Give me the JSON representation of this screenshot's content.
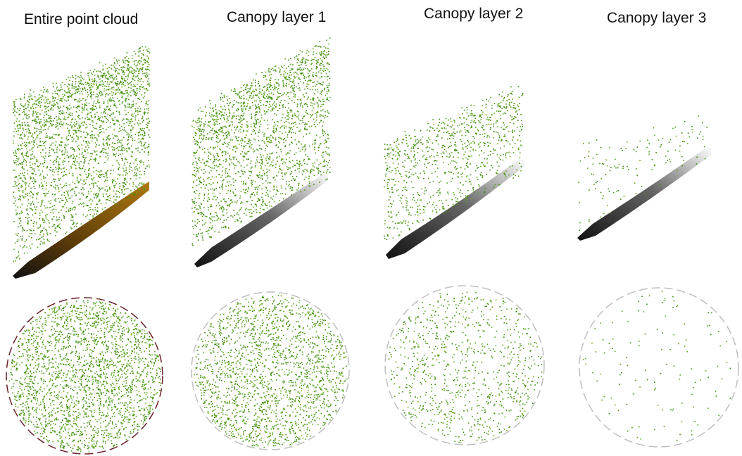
{
  "panels": [
    {
      "id": "entire",
      "title": "Entire point cloud",
      "ground_color": "#8a5a10",
      "density": 1.0,
      "circle_stroke": "#6b1f2a"
    },
    {
      "id": "layer1",
      "title": "Canopy layer 1",
      "ground_color": "#222222",
      "density": 0.8,
      "circle_stroke": "#bfbfbf"
    },
    {
      "id": "layer2",
      "title": "Canopy layer 2",
      "ground_color": "#222222",
      "density": 0.35,
      "circle_stroke": "#bfbfbf"
    },
    {
      "id": "layer3",
      "title": "Canopy layer  3",
      "ground_color": "#222222",
      "density": 0.05,
      "circle_stroke": "#bfbfbf"
    }
  ],
  "colors": {
    "point_green": "#5aa51e",
    "point_dark_green": "#3f8a0e"
  }
}
